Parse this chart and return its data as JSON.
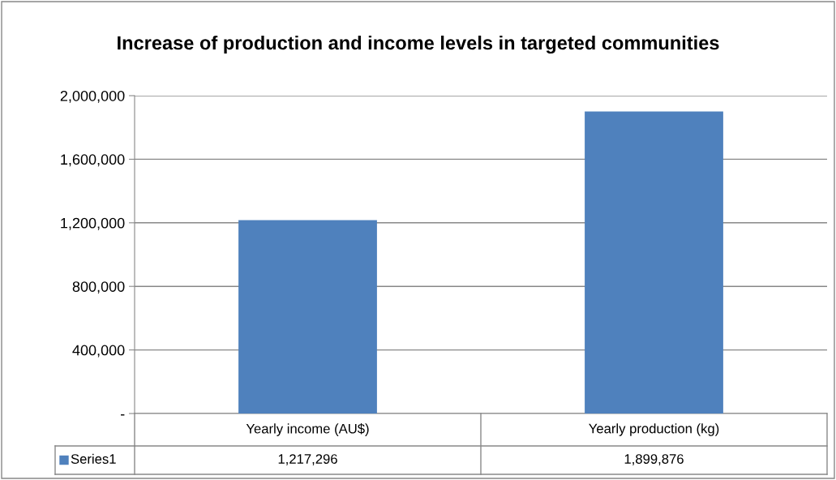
{
  "chart_data": {
    "type": "bar",
    "title": "Increase of production and income levels in targeted communities",
    "categories": [
      "Yearly income (AU$)",
      "Yearly production (kg)"
    ],
    "series": [
      {
        "name": "Series1",
        "color": "#4f81bd",
        "values": [
          1217296,
          1899876
        ],
        "value_labels": [
          "1,217,296",
          "1,899,876"
        ]
      }
    ],
    "ylim": [
      0,
      2000000
    ],
    "yticks": [
      {
        "value": 0,
        "label": "-"
      },
      {
        "value": 400000,
        "label": "400,000"
      },
      {
        "value": 800000,
        "label": "800,000"
      },
      {
        "value": 1200000,
        "label": "1,200,000"
      },
      {
        "value": 1600000,
        "label": "1,600,000"
      },
      {
        "value": 2000000,
        "label": "2,000,000"
      }
    ],
    "grid": "y"
  }
}
